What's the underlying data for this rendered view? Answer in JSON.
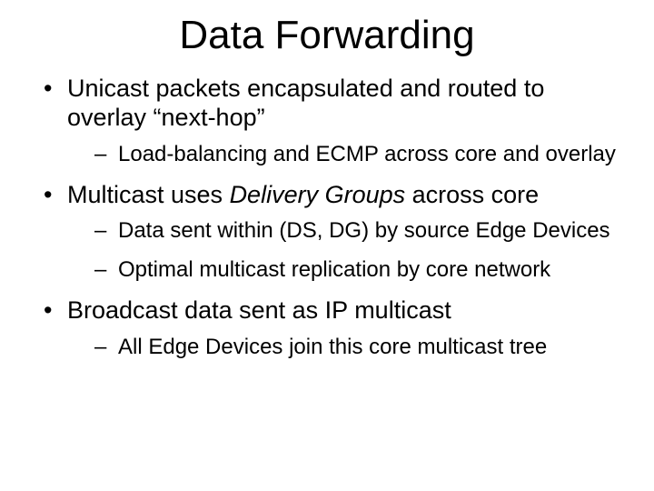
{
  "title": "Data Forwarding",
  "bullets": [
    {
      "text_parts": [
        "Unicast packets encapsulated and routed to overlay “next-hop”"
      ],
      "sub": [
        "Load-balancing and ECMP across core and overlay"
      ]
    },
    {
      "text_parts": [
        "Multicast uses ",
        {
          "italic": true,
          "text": "Delivery Groups"
        },
        " across core"
      ],
      "sub": [
        "Data sent within (DS, DG) by source Edge Devices",
        "Optimal multicast replication by core network"
      ]
    },
    {
      "text_parts": [
        "Broadcast data sent as IP multicast"
      ],
      "sub": [
        "All Edge Devices join this core multicast tree"
      ]
    }
  ],
  "colors": {
    "background": "#ffffff",
    "text": "#000000"
  },
  "typography": {
    "title_fontsize": 44,
    "level1_fontsize": 27,
    "level2_fontsize": 24,
    "font_family": "Comic Sans MS"
  }
}
